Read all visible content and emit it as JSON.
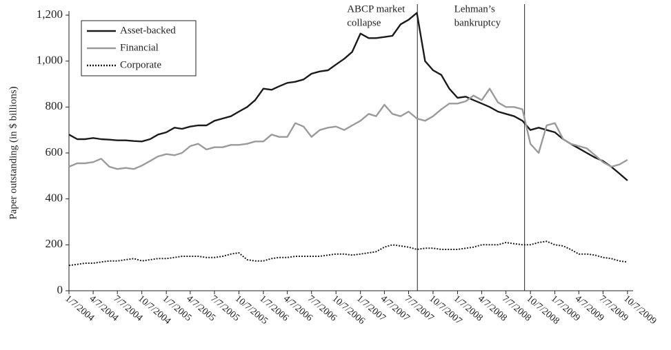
{
  "chart_data": {
    "type": "line",
    "ylabel": "Paper outstanding (in $ billions)",
    "x": [
      "1/7/2004",
      "2/7/2004",
      "3/7/2004",
      "4/7/2004",
      "5/7/2004",
      "6/7/2004",
      "7/7/2004",
      "8/7/2004",
      "9/7/2004",
      "10/7/2004",
      "11/7/2004",
      "12/7/2004",
      "1/7/2005",
      "2/7/2005",
      "3/7/2005",
      "4/7/2005",
      "5/7/2005",
      "6/7/2005",
      "7/7/2005",
      "8/7/2005",
      "9/7/2005",
      "10/7/2005",
      "11/7/2005",
      "12/7/2005",
      "1/7/2006",
      "2/7/2006",
      "3/7/2006",
      "4/7/2006",
      "5/7/2006",
      "6/7/2006",
      "7/7/2006",
      "8/7/2006",
      "9/7/2006",
      "10/7/2006",
      "11/7/2006",
      "12/7/2006",
      "1/7/2007",
      "2/7/2007",
      "3/7/2007",
      "4/7/2007",
      "5/7/2007",
      "6/7/2007",
      "7/7/2007",
      "8/7/2007",
      "9/7/2007",
      "10/7/2007",
      "11/7/2007",
      "12/7/2007",
      "1/7/2008",
      "2/7/2008",
      "3/7/2008",
      "4/7/2008",
      "5/7/2008",
      "6/7/2008",
      "7/7/2008",
      "8/7/2008",
      "9/7/2008",
      "10/7/2008",
      "11/7/2008",
      "12/7/2008",
      "1/7/2009",
      "2/7/2009",
      "3/7/2009",
      "4/7/2009",
      "5/7/2009",
      "6/7/2009",
      "7/7/2009",
      "8/7/2009",
      "9/7/2009",
      "10/7/2009"
    ],
    "series": [
      {
        "name": "Asset-backed",
        "color": "#1a1a1a",
        "style": "solid",
        "values": [
          680,
          660,
          660,
          665,
          660,
          658,
          655,
          655,
          652,
          650,
          660,
          680,
          690,
          710,
          705,
          715,
          720,
          720,
          740,
          750,
          760,
          780,
          800,
          830,
          880,
          875,
          890,
          905,
          910,
          920,
          945,
          955,
          960,
          985,
          1010,
          1040,
          1120,
          1100,
          1100,
          1105,
          1110,
          1160,
          1180,
          1210,
          1000,
          960,
          940,
          880,
          840,
          845,
          830,
          815,
          800,
          780,
          770,
          760,
          740,
          700,
          710,
          700,
          690,
          660,
          640,
          620,
          600,
          580,
          565,
          540,
          510,
          480
        ]
      },
      {
        "name": "Financial",
        "color": "#9a9a9a",
        "style": "solid",
        "values": [
          540,
          555,
          555,
          560,
          575,
          540,
          530,
          535,
          530,
          545,
          565,
          585,
          595,
          590,
          600,
          630,
          640,
          615,
          625,
          625,
          635,
          635,
          640,
          650,
          650,
          680,
          670,
          670,
          730,
          715,
          670,
          700,
          710,
          715,
          700,
          720,
          740,
          770,
          760,
          810,
          770,
          760,
          780,
          750,
          740,
          760,
          790,
          815,
          815,
          825,
          850,
          830,
          880,
          820,
          800,
          800,
          790,
          640,
          600,
          720,
          730,
          660,
          640,
          630,
          620,
          590,
          560,
          540,
          550,
          570
        ]
      },
      {
        "name": "Corporate",
        "color": "#1a1a1a",
        "style": "dotted",
        "values": [
          110,
          115,
          120,
          120,
          125,
          130,
          130,
          135,
          140,
          130,
          135,
          140,
          140,
          145,
          150,
          150,
          150,
          145,
          145,
          150,
          160,
          165,
          135,
          130,
          130,
          140,
          145,
          145,
          150,
          150,
          150,
          150,
          155,
          160,
          160,
          155,
          160,
          165,
          170,
          190,
          200,
          195,
          190,
          180,
          185,
          185,
          180,
          180,
          180,
          185,
          190,
          200,
          200,
          200,
          210,
          205,
          200,
          200,
          210,
          215,
          200,
          195,
          180,
          160,
          160,
          155,
          145,
          140,
          130,
          125
        ]
      }
    ],
    "xlim": [
      "1/7/2004",
      "10/28/2009"
    ],
    "xticks": [
      "1/7/2004",
      "4/7/2004",
      "7/7/2004",
      "10/7/2004",
      "1/7/2005",
      "4/7/2005",
      "7/7/2005",
      "10/7/2005",
      "1/7/2006",
      "4/7/2006",
      "7/7/2006",
      "10/7/2006",
      "1/7/2007",
      "4/7/2007",
      "7/7/2007",
      "10/7/2007",
      "1/7/2008",
      "4/7/2008",
      "7/7/2008",
      "10/7/2008",
      "1/7/2009",
      "4/7/2009",
      "7/7/2009",
      "10/7/2009"
    ],
    "ylim": [
      0,
      1200
    ],
    "yticks": [
      0,
      200,
      400,
      600,
      800,
      {
        "value": 1000,
        "label": "1,000"
      },
      {
        "value": 1200,
        "label": "1,200"
      }
    ],
    "annotations": [
      {
        "text": [
          "ABCP market",
          "collapse"
        ],
        "x": "8/9/2007"
      },
      {
        "text": [
          "Lehman’s",
          "bankruptcy"
        ],
        "x": "9/15/2008"
      }
    ],
    "legend": "upper left"
  }
}
